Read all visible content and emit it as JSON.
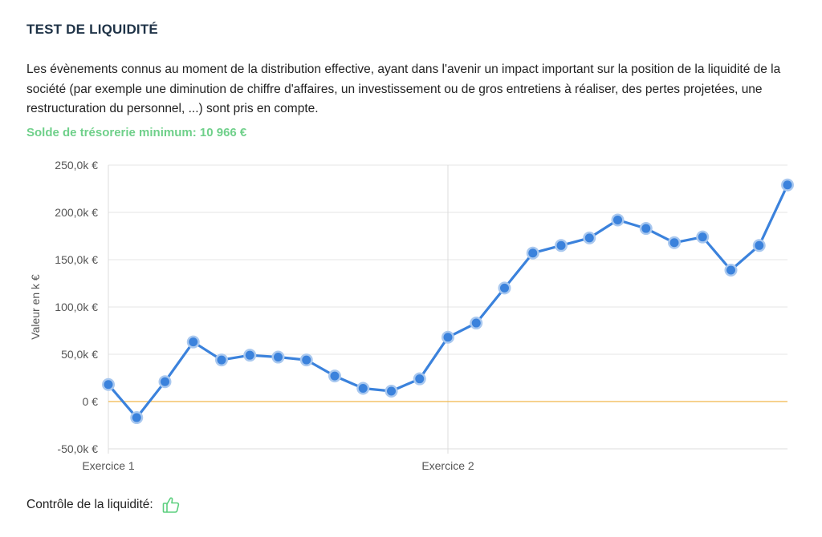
{
  "header": {
    "title": "TEST DE LIQUIDITÉ",
    "description": "Les évènements connus au moment de la distribution effective, ayant dans l'avenir un impact important sur la position de la liquidité de la société (par exemple une diminution de chiffre d'affaires, un investissement ou de gros entretiens à réaliser, des pertes projetées, une restructuration du personnel, ...) sont pris en compte.",
    "min_balance": "Solde de trésorerie minimum: 10 966 €"
  },
  "footer": {
    "label": "Contrôle de la liquidité:",
    "status_icon": "thumbs-up-icon"
  },
  "colors": {
    "line": "#3b82dc",
    "marker_halo": "#a9c8ef",
    "zero_line": "#f0b84a",
    "min_balance_text": "#6fd08a",
    "grid": "#e6e6e6"
  },
  "chart_data": {
    "type": "line",
    "ylabel": "Valeur en k €",
    "xlabel": "",
    "ylim": [
      -50,
      250
    ],
    "y_ticks": [
      {
        "value": 250,
        "label": "250,0k €"
      },
      {
        "value": 200,
        "label": "200,0k €"
      },
      {
        "value": 150,
        "label": "150,0k €"
      },
      {
        "value": 100,
        "label": "100,0k €"
      },
      {
        "value": 50,
        "label": "50,0k €"
      },
      {
        "value": 0,
        "label": "0 €"
      },
      {
        "value": -50,
        "label": "-50,0k €"
      }
    ],
    "x_ticks": [
      {
        "index": 0,
        "label": "Exercice 1"
      },
      {
        "index": 12,
        "label": "Exercice 2"
      }
    ],
    "grid": true,
    "reference_line": 0,
    "series": [
      {
        "values": [
          18,
          -17,
          21,
          63,
          44,
          49,
          47,
          44,
          27,
          14,
          11,
          24,
          68,
          83,
          120,
          157,
          165,
          173,
          192,
          183,
          168,
          174,
          139,
          165,
          229
        ]
      }
    ]
  }
}
